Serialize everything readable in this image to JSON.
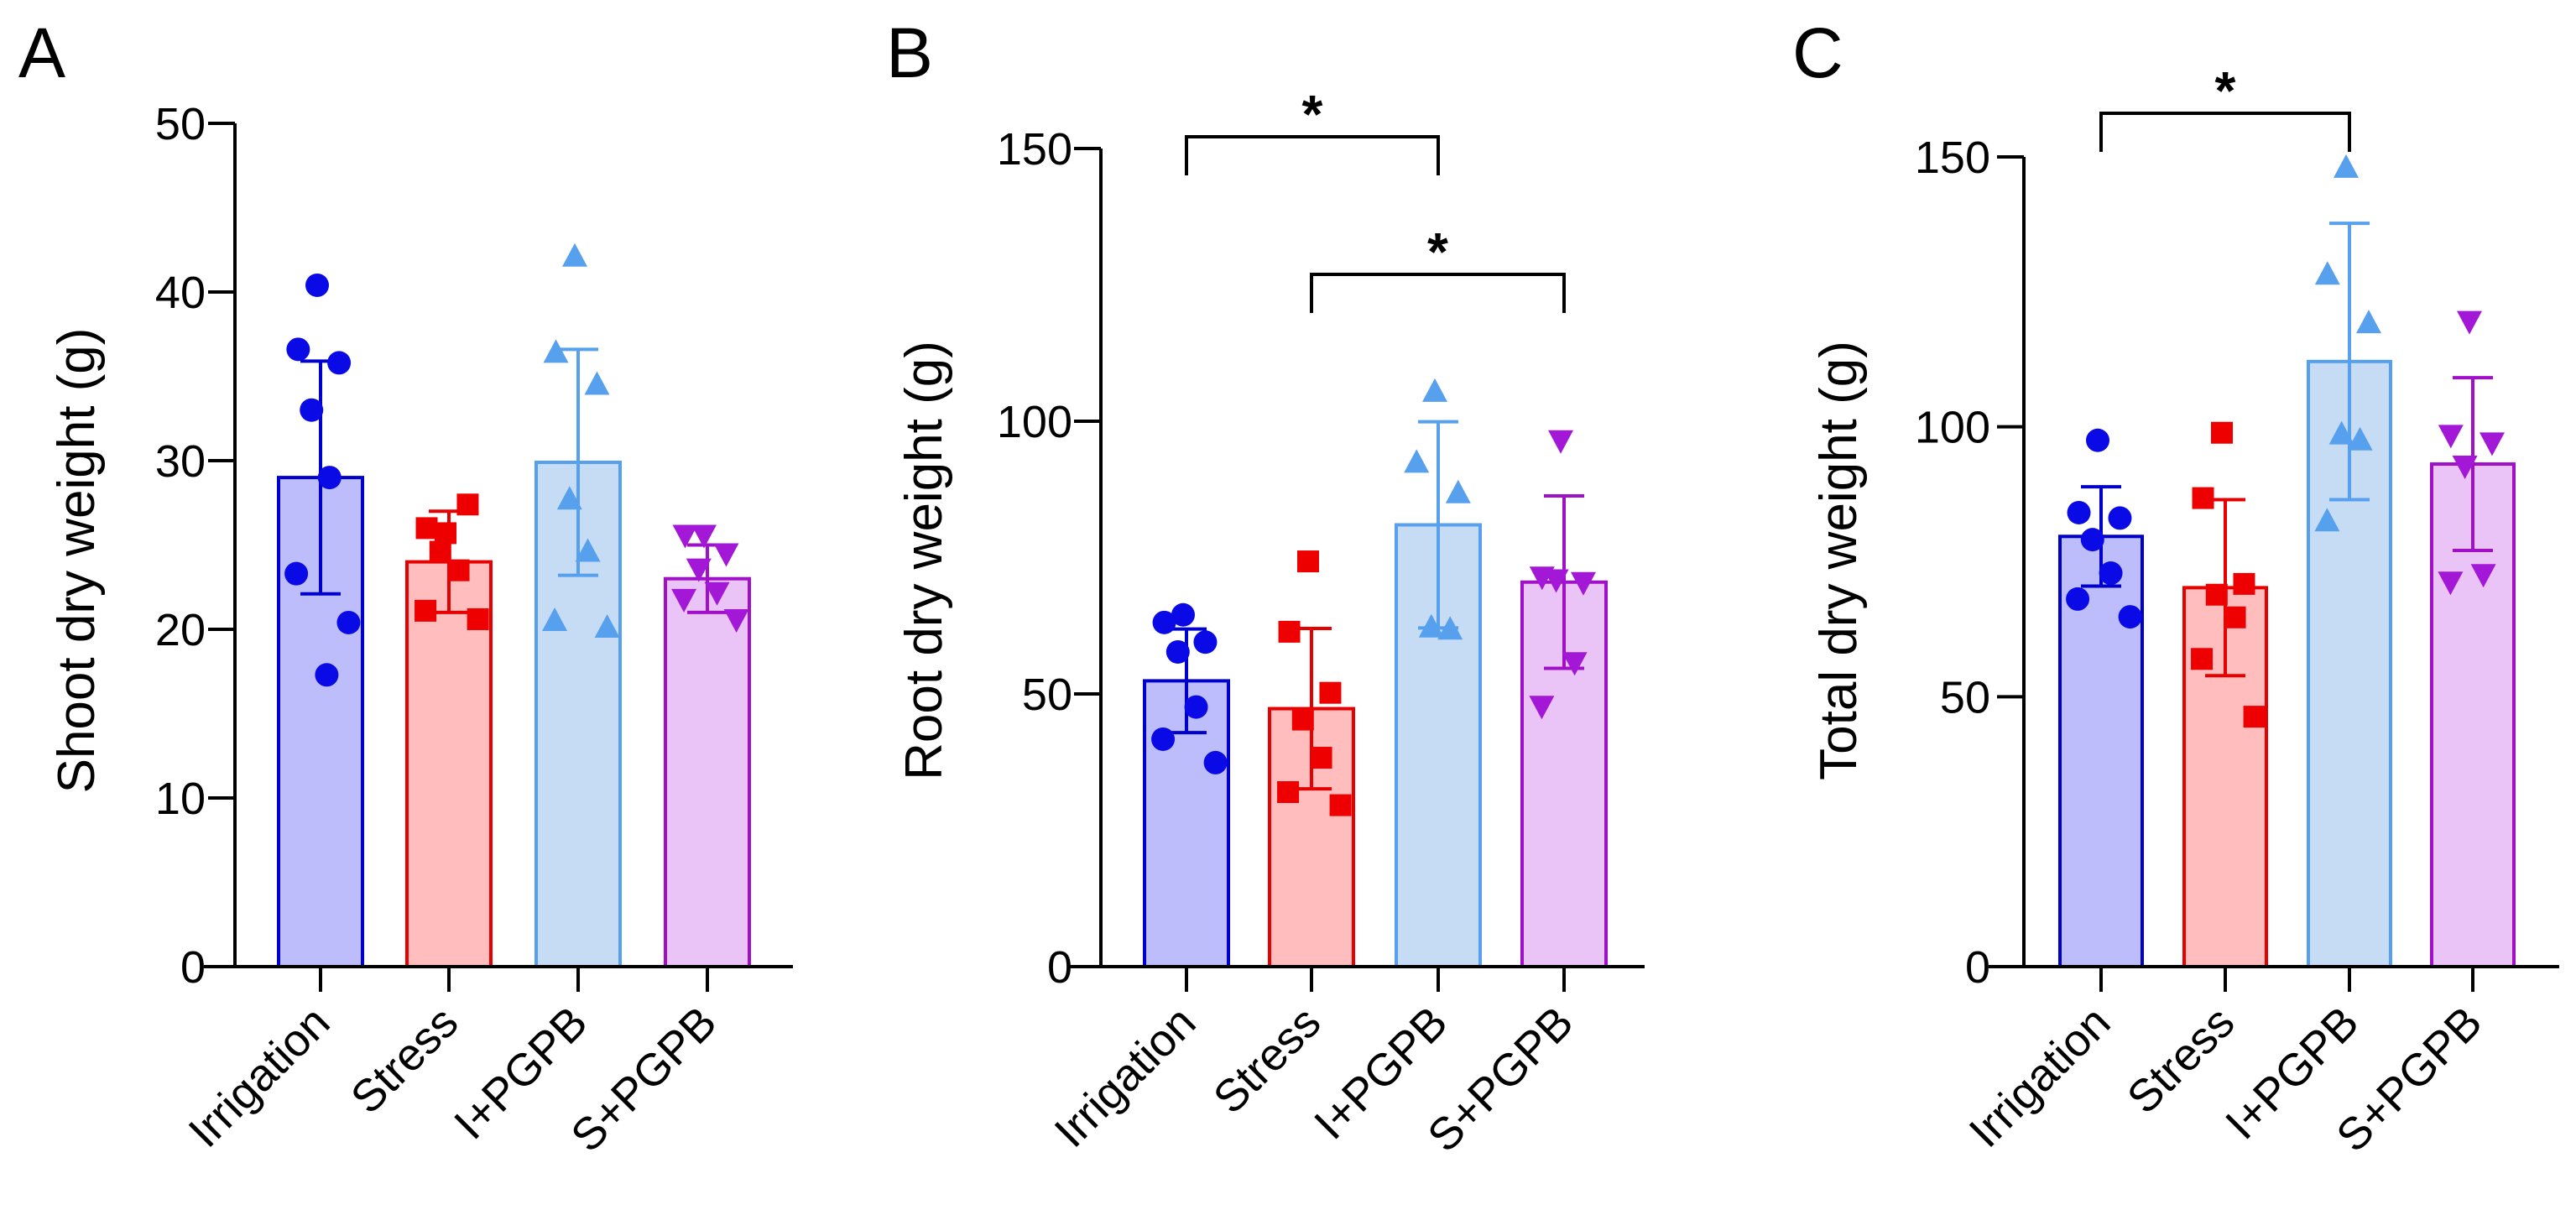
{
  "colors": {
    "Irrigation": {
      "fill": "#bdbdfb",
      "stroke": "#0000cc",
      "marker": "#0a0ae6"
    },
    "Stress": {
      "fill": "#ffbdbd",
      "stroke": "#e60000",
      "marker": "#ee0000"
    },
    "I+PGPB": {
      "fill": "#c6dcf5",
      "stroke": "#56a0ee",
      "marker": "#56a0ee"
    },
    "S+PGPB": {
      "fill": "#eac3f7",
      "stroke": "#a010c8",
      "marker": "#a318d6"
    }
  },
  "chart_data": [
    {
      "type": "bar",
      "panel": "A",
      "title": "",
      "xlabel": "",
      "ylabel": "Shoot dry weight (g)",
      "ylim": [
        0,
        50
      ],
      "yticks": [
        0,
        10,
        20,
        30,
        40,
        50
      ],
      "ytick_labels": [
        "0",
        "10",
        "20",
        "30",
        "40",
        "50"
      ],
      "categories": [
        "Irrigation",
        "Stress",
        "I+PGPB",
        "S+PGPB"
      ],
      "markers": [
        "circle",
        "square",
        "triangle-up",
        "triangle-down"
      ],
      "values": [
        29.0,
        24.0,
        29.9,
        23.0
      ],
      "sd": [
        6.9,
        3.0,
        6.7,
        2.0
      ],
      "points": [
        [
          40.4,
          36.6,
          35.8,
          33.0,
          29.0,
          23.3,
          20.4,
          17.3
        ],
        [
          25.7,
          26.0,
          27.4,
          24.6,
          23.5,
          21.1,
          20.6
        ],
        [
          42.1,
          36.4,
          34.5,
          27.7,
          24.6,
          20.5,
          20.1
        ],
        [
          25.6,
          25.6,
          24.5,
          23.6,
          22.2,
          21.8,
          20.6
        ]
      ],
      "significance": []
    },
    {
      "type": "bar",
      "panel": "B",
      "title": "",
      "xlabel": "",
      "ylabel": "Root dry weight (g)",
      "ylim": [
        0,
        150
      ],
      "yticks": [
        0,
        50,
        100,
        150
      ],
      "ytick_labels": [
        "0",
        "50",
        "100",
        "150"
      ],
      "categories": [
        "Irrigation",
        "Stress",
        "I+PGPB",
        "S+PGPB"
      ],
      "markers": [
        "circle",
        "square",
        "triangle-up",
        "triangle-down"
      ],
      "values": [
        52.4,
        47.3,
        81.0,
        70.5
      ],
      "sd": [
        9.5,
        14.7,
        18.9,
        15.8
      ],
      "points": [
        [
          64.5,
          63.1,
          59.5,
          57.7,
          47.6,
          41.7,
          37.4
        ],
        [
          74.3,
          61.4,
          50.2,
          45.3,
          38.3,
          32.0,
          29.6
        ],
        [
          105.4,
          92.4,
          86.8,
          62.2,
          61.8
        ],
        [
          96.5,
          71.5,
          70.5,
          71.0,
          55.8,
          47.8
        ]
      ],
      "significance": [
        {
          "from": "Irrigation",
          "to": "I+PGPB",
          "label": "*"
        },
        {
          "from": "Stress",
          "to": "S+PGPB",
          "label": "*"
        }
      ]
    },
    {
      "type": "bar",
      "panel": "C",
      "title": "",
      "xlabel": "",
      "ylabel": "Total dry weight (g)",
      "ylim": [
        0,
        150
      ],
      "yticks": [
        0,
        50,
        100,
        150
      ],
      "ytick_labels": [
        "0",
        "50",
        "100",
        "150"
      ],
      "categories": [
        "Irrigation",
        "Stress",
        "I+PGPB",
        "S+PGPB"
      ],
      "markers": [
        "circle",
        "square",
        "triangle-up",
        "triangle-down"
      ],
      "values": [
        79.7,
        70.2,
        112.1,
        93.1
      ],
      "sd": [
        9.2,
        16.3,
        25.6,
        16.0
      ],
      "points": [
        [
          97.5,
          84.1,
          83.1,
          79.1,
          72.9,
          68.1,
          64.8
        ],
        [
          98.9,
          86.8,
          70.9,
          68.9,
          64.7,
          57.0,
          46.3
        ],
        [
          148.0,
          128.2,
          119.2,
          98.6,
          97.5,
          82.5
        ],
        [
          119.6,
          98.5,
          97.1,
          92.8,
          72.7,
          71.3
        ]
      ],
      "significance": [
        {
          "from": "Irrigation",
          "to": "I+PGPB",
          "label": "*"
        }
      ]
    }
  ]
}
